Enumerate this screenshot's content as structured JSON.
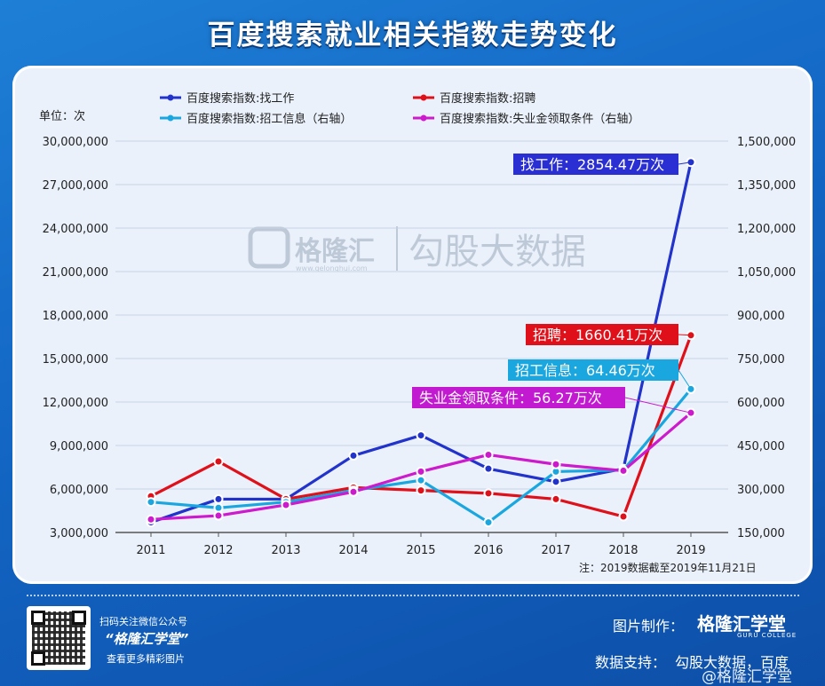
{
  "title": "百度搜索就业相关指数走势变化",
  "unit_label": "单位：次",
  "note": "注：2019数据截至2019年11月21日",
  "watermark": {
    "logo_text": "格隆汇",
    "logo_url": "www.gelonghui.com",
    "brand": "勾股大数据"
  },
  "footer": {
    "scan_line": "扫码关注微信公众号",
    "account": "“格隆汇学堂”",
    "more": "查看更多精彩图片",
    "made_by_label": "图片制作：",
    "made_by": "格隆汇学堂",
    "made_by_sub": "GURU COLLEGE",
    "support_label": "数据支持：",
    "support": "勾股大数据，百度",
    "weibo": "@格隆汇学堂"
  },
  "chart_data": {
    "type": "line",
    "title": "百度搜索就业相关指数走势变化",
    "categories": [
      "2011",
      "2012",
      "2013",
      "2014",
      "2015",
      "2016",
      "2017",
      "2018",
      "2019"
    ],
    "y_left": {
      "min": 3000000,
      "max": 30000000,
      "step": 3000000,
      "ticks": [
        "3,000,000",
        "6,000,000",
        "9,000,000",
        "12,000,000",
        "15,000,000",
        "18,000,000",
        "21,000,000",
        "24,000,000",
        "27,000,000",
        "30,000,000"
      ]
    },
    "y_right": {
      "min": 150000,
      "max": 1500000,
      "step": 150000,
      "ticks": [
        "150,000",
        "300,000",
        "450,000",
        "600,000",
        "750,000",
        "900,000",
        "1,050,000",
        "1,200,000",
        "1,350,000",
        "1,500,000"
      ]
    },
    "series": [
      {
        "name": "百度搜索指数:找工作",
        "axis": "left",
        "color": "#2233cc",
        "values": [
          3700000,
          5300000,
          5300000,
          8300000,
          9700000,
          7400000,
          6500000,
          7400000,
          28544700
        ],
        "callout": "找工作：2854.47万次",
        "callout_bg": "#2a2fd4"
      },
      {
        "name": "百度搜索指数:招聘",
        "axis": "left",
        "color": "#e0101a",
        "values": [
          5500000,
          7900000,
          5300000,
          6100000,
          5900000,
          5700000,
          5300000,
          4100000,
          16604100
        ],
        "callout": "招聘：1660.41万次",
        "callout_bg": "#e0101a"
      },
      {
        "name": "百度搜索指数:招工信息（右轴）",
        "axis": "right",
        "color": "#1aa7e0",
        "values": [
          255000,
          235000,
          255000,
          295000,
          330000,
          185000,
          360000,
          365000,
          644600
        ],
        "callout": "招工信息：64.46万次",
        "callout_bg": "#1aa7e0"
      },
      {
        "name": "百度搜索指数:失业金领取条件（右轴）",
        "axis": "right",
        "color": "#cc1acc",
        "values": [
          195000,
          208000,
          245000,
          290000,
          360000,
          418000,
          385000,
          363000,
          562700
        ],
        "callout": "失业金领取条件：56.27万次",
        "callout_bg": "#c21ad0"
      }
    ],
    "legend_position": "top"
  }
}
